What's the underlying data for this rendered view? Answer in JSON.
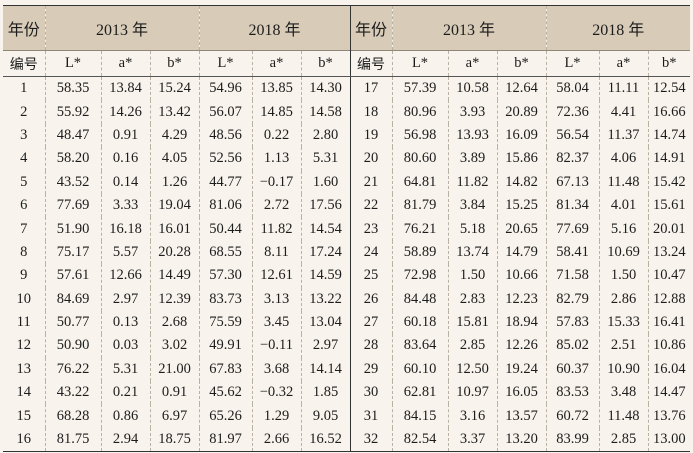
{
  "header": {
    "year_label": "年份",
    "year_a": "2013 年",
    "year_b": "2018 年",
    "id_label": "编号",
    "cols": [
      "L*",
      "a*",
      "b*"
    ]
  },
  "rows_left": [
    [
      "1",
      "58.35",
      "13.84",
      "15.24",
      "54.96",
      "13.85",
      "14.30"
    ],
    [
      "2",
      "55.92",
      "14.26",
      "13.42",
      "56.07",
      "14.85",
      "14.58"
    ],
    [
      "3",
      "48.47",
      "0.91",
      "4.29",
      "48.56",
      "0.22",
      "2.80"
    ],
    [
      "4",
      "58.20",
      "0.16",
      "4.05",
      "52.56",
      "1.13",
      "5.31"
    ],
    [
      "5",
      "43.52",
      "0.14",
      "1.26",
      "44.77",
      "−0.17",
      "1.60"
    ],
    [
      "6",
      "77.69",
      "3.33",
      "19.04",
      "81.06",
      "2.72",
      "17.56"
    ],
    [
      "7",
      "51.90",
      "16.18",
      "16.01",
      "50.44",
      "11.82",
      "14.54"
    ],
    [
      "8",
      "75.17",
      "5.57",
      "20.28",
      "68.55",
      "8.11",
      "17.24"
    ],
    [
      "9",
      "57.61",
      "12.66",
      "14.49",
      "57.30",
      "12.61",
      "14.59"
    ],
    [
      "10",
      "84.69",
      "2.97",
      "12.39",
      "83.73",
      "3.13",
      "13.22"
    ],
    [
      "11",
      "50.77",
      "0.13",
      "2.68",
      "75.59",
      "3.45",
      "13.04"
    ],
    [
      "12",
      "50.90",
      "0.03",
      "3.02",
      "49.91",
      "−0.11",
      "2.97"
    ],
    [
      "13",
      "76.22",
      "5.31",
      "21.00",
      "67.83",
      "3.68",
      "14.14"
    ],
    [
      "14",
      "43.22",
      "0.21",
      "0.91",
      "45.62",
      "−0.32",
      "1.85"
    ],
    [
      "15",
      "68.28",
      "0.86",
      "6.97",
      "65.26",
      "1.29",
      "9.05"
    ],
    [
      "16",
      "81.75",
      "2.94",
      "18.75",
      "81.97",
      "2.66",
      "16.52"
    ]
  ],
  "rows_right": [
    [
      "17",
      "57.39",
      "10.58",
      "12.64",
      "58.04",
      "11.11",
      "12.54"
    ],
    [
      "18",
      "80.96",
      "3.93",
      "20.89",
      "72.36",
      "4.41",
      "16.66"
    ],
    [
      "19",
      "56.98",
      "13.93",
      "16.09",
      "56.54",
      "11.37",
      "14.74"
    ],
    [
      "20",
      "80.60",
      "3.89",
      "15.86",
      "82.37",
      "4.06",
      "14.91"
    ],
    [
      "21",
      "64.81",
      "11.82",
      "14.82",
      "67.13",
      "11.48",
      "15.42"
    ],
    [
      "22",
      "81.79",
      "3.84",
      "15.25",
      "81.34",
      "4.01",
      "15.61"
    ],
    [
      "23",
      "76.21",
      "5.18",
      "20.65",
      "77.69",
      "5.16",
      "20.01"
    ],
    [
      "24",
      "58.89",
      "13.74",
      "14.79",
      "58.41",
      "10.69",
      "13.24"
    ],
    [
      "25",
      "72.98",
      "1.50",
      "10.66",
      "71.58",
      "1.50",
      "10.47"
    ],
    [
      "26",
      "84.48",
      "2.83",
      "12.23",
      "82.79",
      "2.86",
      "12.88"
    ],
    [
      "27",
      "60.18",
      "15.81",
      "18.94",
      "57.83",
      "15.33",
      "16.41"
    ],
    [
      "28",
      "83.64",
      "2.85",
      "12.26",
      "85.02",
      "2.51",
      "10.86"
    ],
    [
      "29",
      "60.10",
      "12.50",
      "19.24",
      "60.37",
      "10.90",
      "16.04"
    ],
    [
      "30",
      "62.81",
      "10.97",
      "16.05",
      "83.53",
      "3.48",
      "14.47"
    ],
    [
      "31",
      "84.15",
      "3.16",
      "13.57",
      "60.72",
      "11.48",
      "13.76"
    ],
    [
      "32",
      "82.54",
      "3.37",
      "13.20",
      "83.99",
      "2.85",
      "13.00"
    ]
  ]
}
